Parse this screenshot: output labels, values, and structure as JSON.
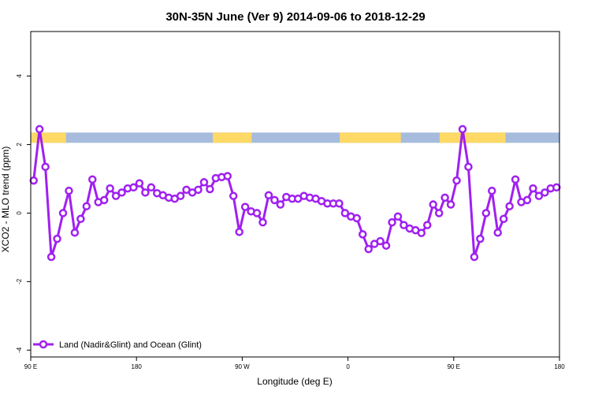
{
  "chart_data": {
    "type": "line",
    "title": "30N-35N June (Ver 9)   2014-09-06 to 2018-12-29",
    "xlabel": "Longitude (deg E)",
    "ylabel": "XCO2 - MLO trend (ppm)",
    "xlim": [
      90,
      540
    ],
    "ylim": [
      -4.2,
      5.3
    ],
    "x_ticks": [
      {
        "value": 90,
        "label": "90 E"
      },
      {
        "value": 180,
        "label": "180"
      },
      {
        "value": 270,
        "label": "90 W"
      },
      {
        "value": 360,
        "label": "0"
      },
      {
        "value": 450,
        "label": "90 E"
      },
      {
        "value": 540,
        "label": "180"
      }
    ],
    "y_ticks": [
      {
        "value": -4,
        "label": "-4"
      },
      {
        "value": -2,
        "label": "-2"
      },
      {
        "value": 0,
        "label": "0"
      },
      {
        "value": 2,
        "label": "2"
      },
      {
        "value": 4,
        "label": "4"
      }
    ],
    "legend": {
      "position": "bottom-left"
    },
    "series": [
      {
        "name": "Land (Nadir&Glint) and Ocean (Glint)",
        "color": "#a020f0",
        "x": [
          92.5,
          97.5,
          102.5,
          107.5,
          112.5,
          117.5,
          122.5,
          127.5,
          132.5,
          137.5,
          142.5,
          147.5,
          152.5,
          157.5,
          162.5,
          167.5,
          172.5,
          177.5,
          182.5,
          187.5,
          192.5,
          197.5,
          202.5,
          207.5,
          212.5,
          217.5,
          222.5,
          227.5,
          232.5,
          237.5,
          242.5,
          247.5,
          252.5,
          257.5,
          262.5,
          267.5,
          272.5,
          277.5,
          282.5,
          287.5,
          292.5,
          297.5,
          302.5,
          307.5,
          312.5,
          317.5,
          322.5,
          327.5,
          332.5,
          337.5,
          342.5,
          347.5,
          352.5,
          357.5,
          362.5,
          367.5,
          372.5,
          377.5,
          382.5,
          387.5,
          392.5,
          397.5,
          402.5,
          407.5,
          412.5,
          417.5,
          422.5,
          427.5,
          432.5,
          437.5,
          442.5,
          447.5,
          452.5,
          457.5,
          462.5,
          467.5,
          472.5,
          477.5,
          482.5,
          487.5,
          492.5,
          497.5,
          502.5,
          507.5,
          512.5,
          517.5,
          522.5,
          527.5,
          532.5,
          537.5
        ],
        "values": [
          0.95,
          2.45,
          1.35,
          -1.28,
          -0.75,
          0.0,
          0.65,
          -0.57,
          -0.17,
          0.2,
          0.98,
          0.32,
          0.38,
          0.72,
          0.5,
          0.6,
          0.72,
          0.75,
          0.87,
          0.6,
          0.75,
          0.58,
          0.52,
          0.45,
          0.42,
          0.5,
          0.68,
          0.6,
          0.68,
          0.9,
          0.7,
          1.02,
          1.05,
          1.08,
          0.5,
          -0.55,
          0.18,
          0.05,
          0.0,
          -0.27,
          0.52,
          0.38,
          0.25,
          0.47,
          0.42,
          0.42,
          0.5,
          0.45,
          0.42,
          0.35,
          0.28,
          0.28,
          0.28,
          0.0,
          -0.1,
          -0.15,
          -0.62,
          -1.05,
          -0.9,
          -0.82,
          -0.95,
          -0.27,
          -0.1,
          -0.35,
          -0.45,
          -0.5,
          -0.58,
          -0.35,
          0.25,
          0.0,
          0.45,
          0.25,
          0.95,
          2.45,
          1.35,
          -1.28,
          -0.75,
          0.0,
          0.65,
          -0.57,
          -0.17,
          0.2,
          0.98,
          0.32,
          0.38,
          0.72,
          0.5,
          0.6,
          0.72,
          0.75
        ]
      }
    ],
    "surface_band": {
      "y_range": [
        2.05,
        2.35
      ],
      "land_color": "#ffd966",
      "ocean_color": "#a7bcdd",
      "land_segments": [
        [
          90,
          120
        ],
        [
          245,
          278
        ],
        [
          353,
          405
        ],
        [
          438,
          494
        ]
      ]
    }
  }
}
